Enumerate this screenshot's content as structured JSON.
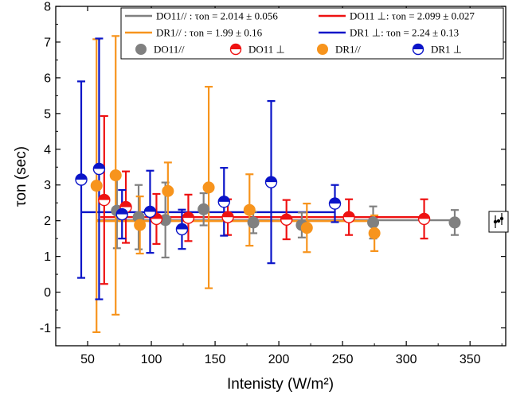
{
  "chart_data": {
    "type": "scatter",
    "title": "",
    "xlabel": "Intenisty (W/m²)",
    "ylabel": "τon (sec)",
    "xlim": [
      25,
      378
    ],
    "ylim": [
      -1.5,
      8
    ],
    "xticks": [
      50,
      100,
      150,
      200,
      250,
      300,
      350
    ],
    "yticks": [
      -1,
      0,
      1,
      2,
      3,
      4,
      5,
      6,
      7,
      8
    ],
    "grid": false,
    "legend_position": "top-right",
    "fits": [
      {
        "label": "DO11// : τon = 2.014 ± 0.056",
        "color": "#808080",
        "x_range": [
          57,
          338
        ],
        "y": 2.014
      },
      {
        "label": "DO11 ⊥: τon = 2.099 ± 0.027",
        "color": "#ee1111",
        "x_range": [
          60,
          314
        ],
        "y": 2.099
      },
      {
        "label": "DR1// : τon = 1.99 ± 0.16",
        "color": "#f7941d",
        "x_range": [
          57,
          274
        ],
        "y": 1.99
      },
      {
        "label": "DR1 ⊥: τon = 2.24 ± 0.13",
        "color": "#0a14c8",
        "x_range": [
          45,
          244
        ],
        "y": 2.24
      }
    ],
    "series": [
      {
        "name": "DO11//",
        "color": "#808080",
        "marker": "full",
        "points": [
          {
            "x": 73,
            "y": 2.28,
            "err": 1.05
          },
          {
            "x": 90,
            "y": 2.1,
            "err": 0.9
          },
          {
            "x": 111,
            "y": 2.02,
            "err": 1.05
          },
          {
            "x": 141,
            "y": 2.32,
            "err": 0.45
          },
          {
            "x": 180,
            "y": 1.95,
            "err": 0.3
          },
          {
            "x": 218,
            "y": 1.88,
            "err": 0.35
          },
          {
            "x": 274,
            "y": 1.95,
            "err": 0.45
          },
          {
            "x": 338,
            "y": 1.95,
            "err": 0.35
          }
        ]
      },
      {
        "name": "DO11 ⊥",
        "color": "#ee1111",
        "marker": "half",
        "points": [
          {
            "x": 63,
            "y": 2.58,
            "err": 2.35
          },
          {
            "x": 80,
            "y": 2.38,
            "err": 1.0
          },
          {
            "x": 104,
            "y": 2.05,
            "err": 0.7
          },
          {
            "x": 129,
            "y": 2.08,
            "err": 0.65
          },
          {
            "x": 160,
            "y": 2.1,
            "err": 0.5
          },
          {
            "x": 206,
            "y": 2.03,
            "err": 0.55
          },
          {
            "x": 255,
            "y": 2.1,
            "err": 0.5
          },
          {
            "x": 314,
            "y": 2.05,
            "err": 0.55
          }
        ]
      },
      {
        "name": "DR1//",
        "color": "#f7941d",
        "marker": "full",
        "points": [
          {
            "x": 57,
            "y": 2.98,
            "err": 4.1
          },
          {
            "x": 72,
            "y": 3.27,
            "err": 3.9
          },
          {
            "x": 91,
            "y": 1.88,
            "err": 0.8
          },
          {
            "x": 113,
            "y": 2.83,
            "err": 0.8
          },
          {
            "x": 145,
            "y": 2.93,
            "err": 2.82
          },
          {
            "x": 177,
            "y": 2.3,
            "err": 1.0
          },
          {
            "x": 222,
            "y": 1.8,
            "err": 0.68
          },
          {
            "x": 275,
            "y": 1.65,
            "err": 0.5
          }
        ]
      },
      {
        "name": "DR1 ⊥",
        "color": "#0a14c8",
        "marker": "half",
        "points": [
          {
            "x": 45,
            "y": 3.15,
            "err": 2.75
          },
          {
            "x": 59,
            "y": 3.45,
            "err": 3.65
          },
          {
            "x": 77,
            "y": 2.18,
            "err": 0.68
          },
          {
            "x": 99,
            "y": 2.25,
            "err": 1.15
          },
          {
            "x": 124,
            "y": 1.76,
            "err": 0.55
          },
          {
            "x": 157,
            "y": 2.53,
            "err": 0.95
          },
          {
            "x": 194,
            "y": 3.08,
            "err": 2.27
          },
          {
            "x": 244,
            "y": 2.48,
            "err": 0.52
          }
        ]
      }
    ]
  }
}
